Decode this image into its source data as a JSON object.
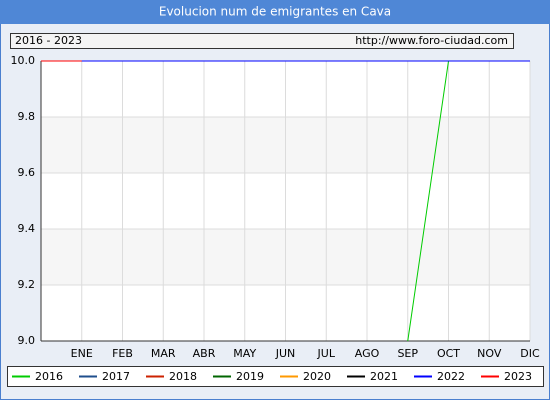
{
  "chart_data": {
    "type": "line",
    "title": "Evolucion num de emigrantes en Cava",
    "subtitle": "2016 - 2023",
    "source": "http://www.foro-ciudad.com",
    "categories": [
      null,
      "ENE",
      "FEB",
      "MAR",
      "ABR",
      "MAY",
      "JUN",
      "JUL",
      "AGO",
      "SEP",
      "OCT",
      "NOV",
      "DIC"
    ],
    "series": [
      {
        "name": "2016",
        "color": "#00cc00",
        "values": [
          null,
          null,
          null,
          null,
          null,
          null,
          null,
          null,
          null,
          9,
          10,
          10,
          10
        ]
      },
      {
        "name": "2017",
        "color": "#1f4e8c",
        "values": [
          null,
          null,
          null,
          null,
          null,
          null,
          null,
          null,
          null,
          null,
          null,
          null,
          null
        ]
      },
      {
        "name": "2018",
        "color": "#cc2200",
        "values": [
          null,
          null,
          null,
          null,
          null,
          null,
          null,
          null,
          null,
          null,
          null,
          null,
          null
        ]
      },
      {
        "name": "2019",
        "color": "#006600",
        "values": [
          null,
          null,
          null,
          null,
          null,
          null,
          null,
          null,
          null,
          null,
          null,
          null,
          null
        ]
      },
      {
        "name": "2020",
        "color": "#ff9900",
        "values": [
          null,
          null,
          null,
          null,
          null,
          null,
          null,
          null,
          null,
          null,
          null,
          null,
          null
        ]
      },
      {
        "name": "2021",
        "color": "#000000",
        "values": [
          null,
          null,
          null,
          null,
          null,
          null,
          null,
          null,
          null,
          null,
          null,
          null,
          null
        ]
      },
      {
        "name": "2022",
        "color": "#0000ff",
        "values": [
          10,
          10,
          10,
          10,
          10,
          10,
          10,
          10,
          10,
          10,
          10,
          10,
          10
        ]
      },
      {
        "name": "2023",
        "color": "#ff0000",
        "values": [
          10,
          10,
          null,
          null,
          null,
          null,
          null,
          null,
          null,
          null,
          null,
          null,
          null
        ]
      }
    ],
    "ylim": [
      9,
      10
    ],
    "yticks": [
      {
        "value": 9,
        "label": "9.0"
      },
      9.2,
      9.4,
      9.6,
      9.8,
      {
        "value": 10,
        "label": "10.0"
      }
    ],
    "grid": true
  }
}
